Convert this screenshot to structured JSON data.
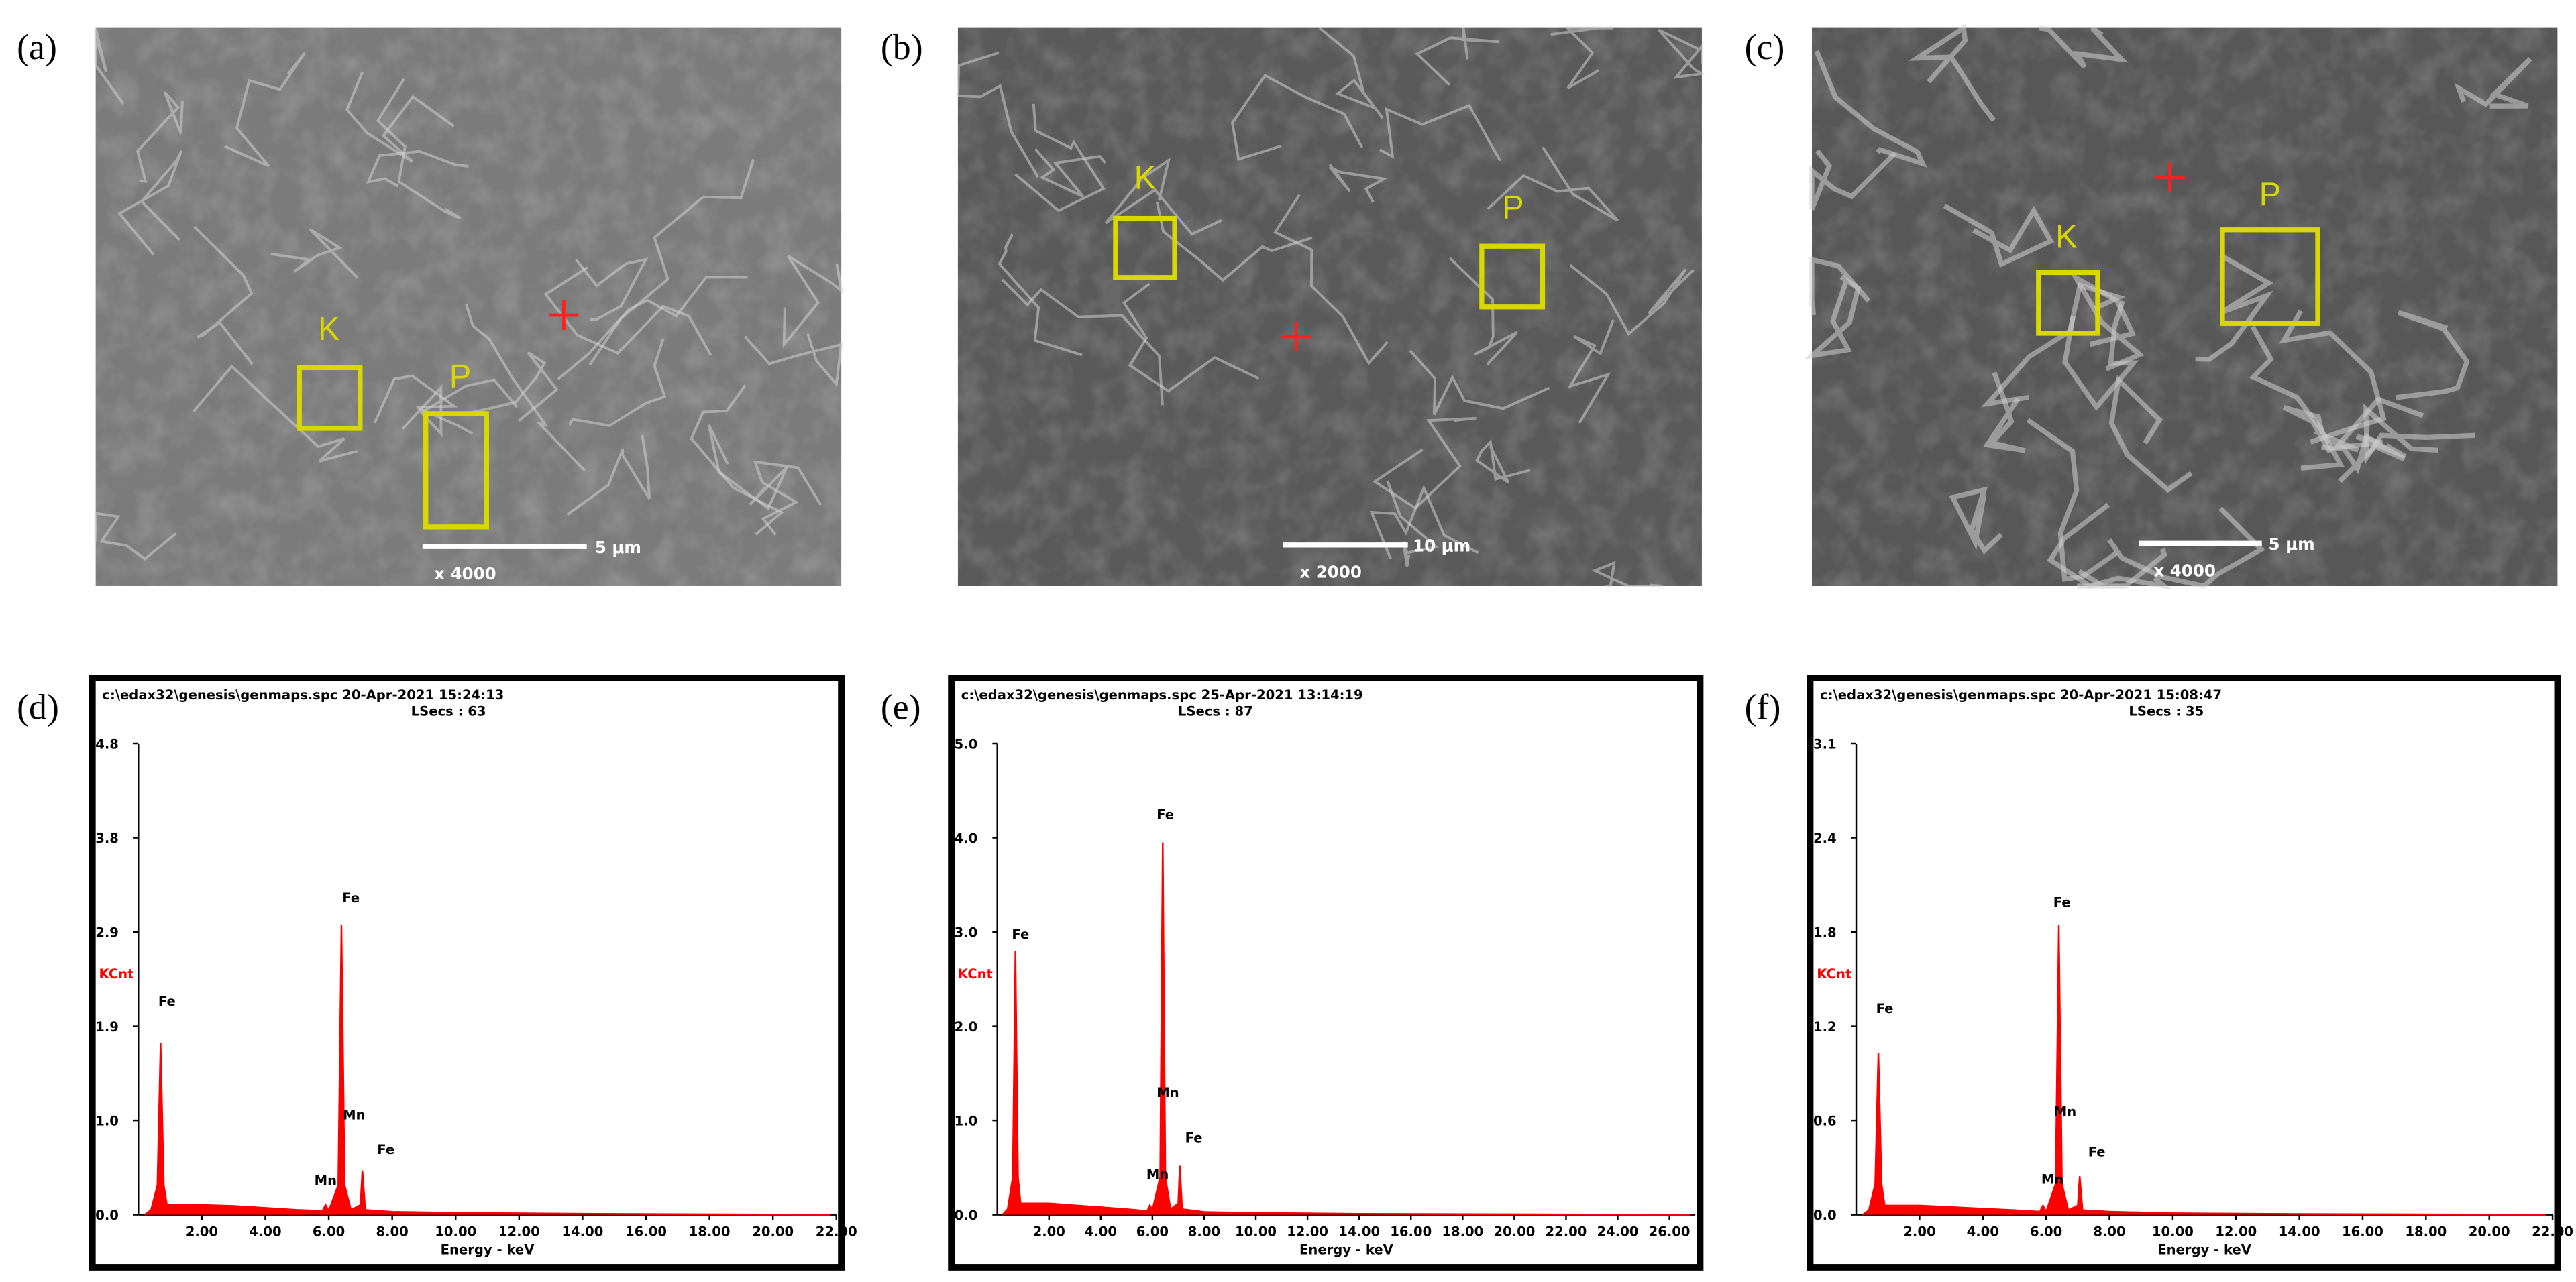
{
  "micrographs": [
    {
      "label": "(a)",
      "box_labels": [
        "K",
        "P"
      ],
      "scale_bar": "5 μm",
      "magnification": "x 4000"
    },
    {
      "label": "(b)",
      "box_labels": [
        "K",
        "P"
      ],
      "scale_bar": "10 μm",
      "magnification": "x 2000"
    },
    {
      "label": "(c)",
      "box_labels": [
        "K",
        "P"
      ],
      "scale_bar": "5 μm",
      "magnification": "x 4000"
    }
  ],
  "chart_data": [
    {
      "type": "area",
      "panel_label": "(d)",
      "title": "c:\\edax32\\genesis\\genmaps.spc  20-Apr-2021 15:24:13",
      "subtitle": "LSecs : 63",
      "y_label": "KCnt",
      "x_label": "Energy - keV",
      "color": "#ff0000",
      "x": [
        0.2,
        0.4,
        0.6,
        0.7,
        0.8,
        0.9,
        1.2,
        2,
        3,
        4,
        5,
        5.8,
        5.9,
        6,
        6.3,
        6.4,
        6.5,
        6.7,
        7,
        7.06,
        7.15,
        8,
        10,
        14,
        21.8
      ],
      "values": [
        0,
        0.05,
        0.3,
        1.75,
        0.3,
        0.1,
        0.1,
        0.1,
        0.09,
        0.07,
        0.05,
        0.04,
        0.1,
        0.04,
        0.3,
        2.95,
        0.3,
        0.05,
        0.1,
        0.45,
        0.05,
        0.03,
        0.02,
        0.01,
        0
      ],
      "annotations": [
        "Fe",
        "Fe",
        "Mn",
        "Fe",
        "Mn"
      ],
      "xlim": [
        0,
        22
      ],
      "xticks": [
        {
          "value": 2,
          "label": "2.00"
        },
        {
          "value": 4,
          "label": "4.00"
        },
        {
          "value": 6,
          "label": "6.00"
        },
        {
          "value": 8,
          "label": "8.00"
        },
        {
          "value": 10,
          "label": "10.00"
        },
        {
          "value": 12,
          "label": "12.00"
        },
        {
          "value": 14,
          "label": "14.00"
        },
        {
          "value": 16,
          "label": "16.00"
        },
        {
          "value": 18,
          "label": "18.00"
        },
        {
          "value": 20,
          "label": "20.00"
        },
        {
          "value": 22,
          "label": "22.00"
        }
      ],
      "ylim": [
        0,
        4.8
      ],
      "yticks": [
        {
          "value": 0,
          "label": "0.0"
        },
        {
          "value": 0.96,
          "label": "1.0"
        },
        {
          "value": 1.92,
          "label": "1.9"
        },
        {
          "value": 2.88,
          "label": "2.9"
        },
        {
          "value": 3.84,
          "label": "3.8"
        },
        4.8
      ]
    },
    {
      "type": "area",
      "panel_label": "(e)",
      "title": "c:\\edax32\\genesis\\genmaps.spc  25-Apr-2021 13:14:19",
      "subtitle": "LSecs : 87",
      "y_label": "KCnt",
      "x_label": "Energy - keV",
      "color": "#ff0000",
      "x": [
        0.2,
        0.4,
        0.6,
        0.7,
        0.8,
        0.9,
        1.2,
        2,
        3,
        4,
        5,
        5.8,
        5.9,
        6,
        6.3,
        6.4,
        6.5,
        6.7,
        7,
        7.06,
        7.15,
        8,
        10,
        14,
        26.8
      ],
      "values": [
        0,
        0.06,
        0.4,
        2.8,
        0.4,
        0.12,
        0.12,
        0.12,
        0.1,
        0.08,
        0.06,
        0.04,
        0.1,
        0.05,
        0.4,
        3.95,
        0.4,
        0.06,
        0.12,
        0.52,
        0.06,
        0.03,
        0.02,
        0.01,
        0
      ],
      "annotations": [
        "Fe",
        "Fe",
        "Mn",
        "Fe",
        "Mn"
      ],
      "xlim": [
        0,
        27
      ],
      "xticks": [
        {
          "value": 2,
          "label": "2.00"
        },
        {
          "value": 4,
          "label": "4.00"
        },
        {
          "value": 6,
          "label": "6.00"
        },
        {
          "value": 8,
          "label": "8.00"
        },
        {
          "value": 10,
          "label": "10.00"
        },
        {
          "value": 12,
          "label": "12.00"
        },
        {
          "value": 14,
          "label": "14.00"
        },
        {
          "value": 16,
          "label": "16.00"
        },
        {
          "value": 18,
          "label": "18.00"
        },
        {
          "value": 20,
          "label": "20.00"
        },
        {
          "value": 22,
          "label": "22.00"
        },
        {
          "value": 24,
          "label": "24.00"
        },
        {
          "value": 26,
          "label": "26.00"
        }
      ],
      "ylim": [
        0,
        5
      ],
      "yticks": [
        {
          "value": 0,
          "label": "0.0"
        },
        {
          "value": 1,
          "label": "1.0"
        },
        {
          "value": 2,
          "label": "2.0"
        },
        {
          "value": 3,
          "label": "3.0"
        },
        {
          "value": 4,
          "label": "4.0"
        },
        {
          "value": 5,
          "label": "5.0"
        }
      ]
    },
    {
      "type": "area",
      "panel_label": "(f)",
      "title": "c:\\edax32\\genesis\\genmaps.spc  20-Apr-2021 15:08:47",
      "subtitle": "LSecs : 35",
      "y_label": "KCnt",
      "x_label": "Energy - keV",
      "color": "#ff0000",
      "x": [
        0.2,
        0.4,
        0.6,
        0.7,
        0.8,
        0.9,
        1.2,
        2,
        3,
        4,
        5,
        5.8,
        5.9,
        6,
        6.3,
        6.4,
        6.5,
        6.7,
        7,
        7.06,
        7.15,
        8,
        10,
        14,
        21.8
      ],
      "values": [
        0,
        0.03,
        0.2,
        1.05,
        0.2,
        0.06,
        0.06,
        0.06,
        0.05,
        0.04,
        0.03,
        0.02,
        0.06,
        0.02,
        0.2,
        1.88,
        0.2,
        0.03,
        0.06,
        0.25,
        0.03,
        0.02,
        0.01,
        0.005,
        0
      ],
      "annotations": [
        "Fe",
        "Fe",
        "Mn",
        "Fe",
        "Mn"
      ],
      "xlim": [
        0,
        22
      ],
      "xticks": [
        {
          "value": 2,
          "label": "2.00"
        },
        {
          "value": 4,
          "label": "4.00"
        },
        {
          "value": 6,
          "label": "6.00"
        },
        {
          "value": 8,
          "label": "8.00"
        },
        {
          "value": 10,
          "label": "10.00"
        },
        {
          "value": 12,
          "label": "12.00"
        },
        {
          "value": 14,
          "label": "14.00"
        },
        {
          "value": 16,
          "label": "16.00"
        },
        {
          "value": 18,
          "label": "18.00"
        },
        {
          "value": 20,
          "label": "20.00"
        },
        {
          "value": 22,
          "label": "22.00"
        }
      ],
      "ylim": [
        0,
        3.06
      ],
      "yticks": [
        {
          "value": 0,
          "label": "0.0"
        },
        {
          "value": 0.612,
          "label": "0.6"
        },
        {
          "value": 1.224,
          "label": "1.2"
        },
        {
          "value": 1.836,
          "label": "1.8"
        },
        {
          "value": 2.448,
          "label": "2.4"
        },
        {
          "value": 3.06,
          "label": "3.1"
        }
      ]
    }
  ]
}
